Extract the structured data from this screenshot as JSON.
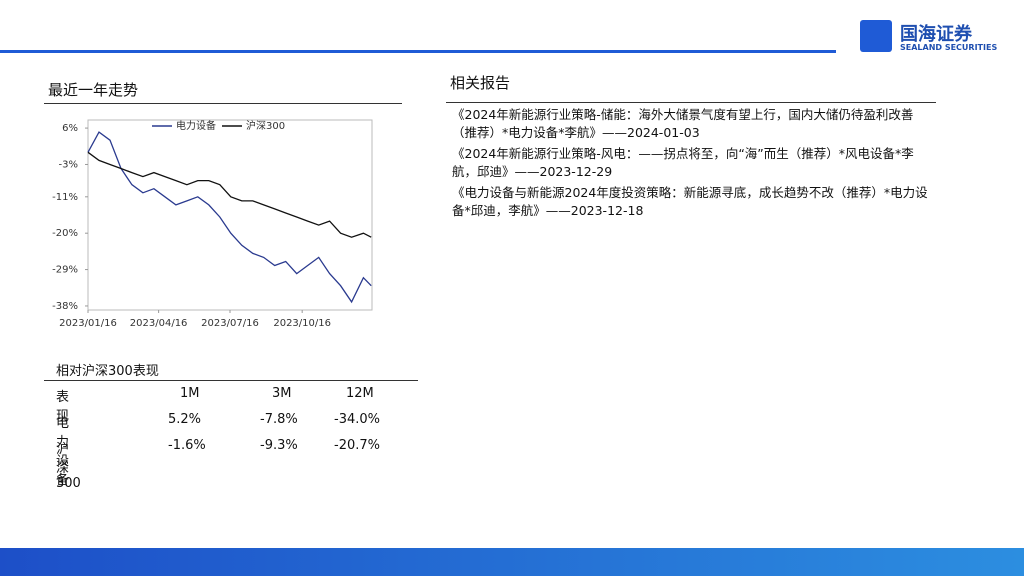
{
  "header": {
    "logo_cn": "国海证券",
    "logo_en": "SEALAND SECURITIES"
  },
  "chart_section": {
    "title": "最近一年走势"
  },
  "chart_data": {
    "type": "line",
    "x": [
      "2023/01/16",
      "2023/01/30",
      "2023/02/13",
      "2023/02/27",
      "2023/03/13",
      "2023/03/27",
      "2023/04/10",
      "2023/04/24",
      "2023/05/08",
      "2023/05/22",
      "2023/06/05",
      "2023/06/19",
      "2023/07/03",
      "2023/07/17",
      "2023/07/31",
      "2023/08/14",
      "2023/08/28",
      "2023/09/11",
      "2023/09/25",
      "2023/10/09",
      "2023/10/23",
      "2023/11/06",
      "2023/11/20",
      "2023/12/04",
      "2023/12/18",
      "2024/01/02",
      "2024/01/12"
    ],
    "series": [
      {
        "name": "电力设备",
        "color": "#2a3a8f",
        "values": [
          0,
          5,
          3,
          -4,
          -8,
          -10,
          -9,
          -11,
          -13,
          -12,
          -11,
          -13,
          -16,
          -20,
          -23,
          -25,
          -26,
          -28,
          -27,
          -30,
          -28,
          -26,
          -30,
          -33,
          -37,
          -31,
          -33
        ]
      },
      {
        "name": "沪深300",
        "color": "#111111",
        "values": [
          0,
          -2,
          -3,
          -4,
          -5,
          -6,
          -5,
          -6,
          -7,
          -8,
          -7,
          -7,
          -8,
          -11,
          -12,
          -12,
          -13,
          -14,
          -15,
          -16,
          -17,
          -18,
          -17,
          -20,
          -21,
          -20,
          -21
        ]
      }
    ],
    "xlim": [
      "2023/01/16",
      "2024/01/13"
    ],
    "xticks": [
      "2023/01/16",
      "2023/04/16",
      "2023/07/16",
      "2023/10/16"
    ],
    "ylim": [
      -39,
      8
    ],
    "yticks": [
      {
        "value": 6,
        "label": "6%"
      },
      {
        "value": -3,
        "label": "-3%"
      },
      {
        "value": -11,
        "label": "-11%"
      },
      {
        "value": -20,
        "label": "-20%"
      },
      {
        "value": -29,
        "label": "-29%"
      },
      {
        "value": -38,
        "label": "-38%"
      }
    ],
    "legend": "top"
  },
  "table": {
    "title": "相对沪深300表现",
    "header": [
      "表现",
      "1M",
      "3M",
      "12M"
    ],
    "rows": [
      [
        "电力设备",
        "5.2%",
        "-7.8%",
        "-34.0%"
      ],
      [
        "沪深300",
        "-1.6%",
        "-9.3%",
        "-20.7%"
      ]
    ]
  },
  "reports": {
    "title": "相关报告",
    "items": [
      "《2024年新能源行业策略-储能：海外大储景气度有望上行，国内大储仍待盈利改善（推荐）*电力设备*李航》——2024-01-03",
      "《2024年新能源行业策略-风电：——拐点将至，向“海”而生（推荐）*风电设备*李航，邱迪》——2023-12-29",
      "《电力设备与新能源2024年度投资策略：新能源寻底，成长趋势不改（推荐）*电力设备*邱迪，李航》——2023-12-18"
    ]
  }
}
